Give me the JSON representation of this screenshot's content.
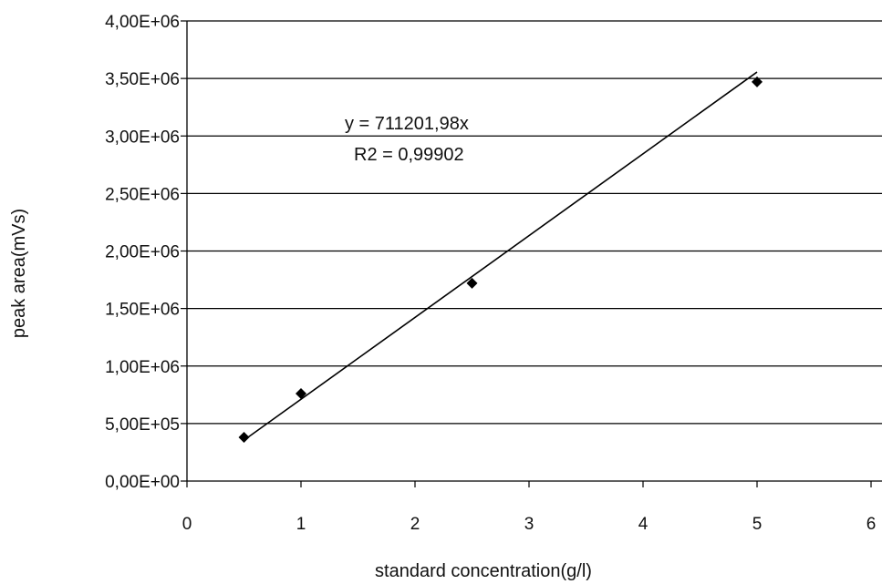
{
  "chart_data": {
    "type": "scatter",
    "title": "",
    "xlabel": "standard concentration(g/l)",
    "ylabel": "peak area(mVs)",
    "xlim": [
      0,
      6
    ],
    "ylim": [
      0,
      4000000
    ],
    "x_ticks": [
      0,
      1,
      2,
      3,
      4,
      5,
      6
    ],
    "x_tick_labels": [
      "0",
      "1",
      "2",
      "3",
      "4",
      "5",
      "6"
    ],
    "y_ticks": [
      0,
      500000,
      1000000,
      1500000,
      2000000,
      2500000,
      3000000,
      3500000,
      4000000
    ],
    "y_tick_labels": [
      "0,00E+00",
      "5,00E+05",
      "1,00E+06",
      "1,50E+06",
      "2,00E+06",
      "2,50E+06",
      "3,00E+06",
      "3,50E+06",
      "4,00E+06"
    ],
    "grid": "horizontal",
    "legend": "none",
    "series": [
      {
        "x": [
          0.5,
          1,
          2.5,
          5
        ],
        "y": [
          380000,
          760000,
          1720000,
          3470000
        ]
      }
    ],
    "trendline": {
      "slope": 711201.98,
      "intercept": 0,
      "x_range": [
        0.5,
        5
      ]
    },
    "annotations": {
      "equation": "y = 711201,98x",
      "r2": "R2 = 0,99902"
    },
    "colors": {
      "marker": "#000000",
      "line": "#000000",
      "grid": "#000000"
    }
  }
}
